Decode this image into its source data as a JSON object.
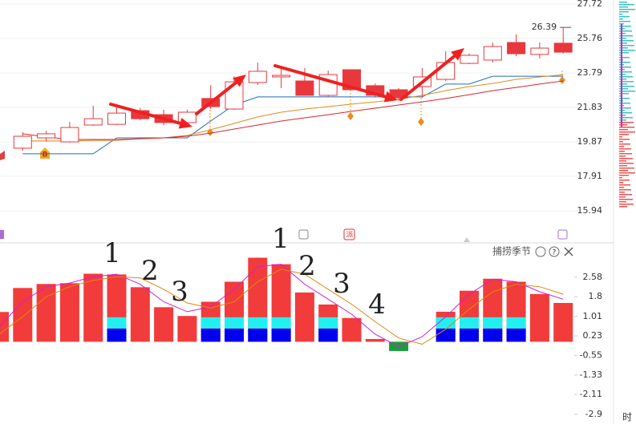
{
  "chart_data": [
    {
      "type": "candlestick",
      "open": [
        19.51,
        20.1,
        19.87,
        20.83,
        20.87,
        21.65,
        21.42,
        20.97,
        22.34,
        21.74,
        23.25,
        23.57,
        23.34,
        22.52,
        23.98,
        23.07,
        22.84,
        23.02,
        23.43,
        24.34,
        24.53,
        25.53,
        24.85,
        25.49
      ],
      "close": [
        20.19,
        20.33,
        20.69,
        21.19,
        21.51,
        21.19,
        20.97,
        21.56,
        21.88,
        23.29,
        23.89,
        23.66,
        22.52,
        23.7,
        22.84,
        22.52,
        22.38,
        23.57,
        24.39,
        24.8,
        25.3,
        24.89,
        25.21,
        24.98
      ],
      "high": [
        20.42,
        20.5,
        21.01,
        21.93,
        22.02,
        21.8,
        21.7,
        21.7,
        23.11,
        23.61,
        24.39,
        24.07,
        24.07,
        23.93,
        23.98,
        23.2,
        22.93,
        24.07,
        25.03,
        24.9,
        25.53,
        25.99,
        25.53,
        26.39
      ],
      "low": [
        19.37,
        19.9,
        19.83,
        20.78,
        20.83,
        21.1,
        20.83,
        20.78,
        21.74,
        21.7,
        23.11,
        22.93,
        22.52,
        22.43,
        22.84,
        22.4,
        22.2,
        22.38,
        23.34,
        24.3,
        24.4,
        24.75,
        24.62,
        24.9
      ],
      "up_color": "#e8383d",
      "down_color": "#e8383d",
      "series": [
        {
          "color": "#1f6fb5",
          "values": [
            19.19,
            19.19,
            19.19,
            19.19,
            20.1,
            20.1,
            20.1,
            20.1,
            21.06,
            21.97,
            22.43,
            22.43,
            22.43,
            22.43,
            22.43,
            22.43,
            22.43,
            22.43,
            23.16,
            23.16,
            23.61,
            23.61,
            23.61,
            23.61
          ]
        },
        {
          "color": "#e08a1e",
          "values": [
            19.92,
            19.92,
            19.92,
            19.96,
            19.96,
            20.05,
            20.1,
            20.24,
            20.56,
            20.92,
            21.29,
            21.56,
            21.74,
            21.88,
            22.02,
            22.15,
            22.29,
            22.52,
            22.79,
            23.02,
            23.2,
            23.43,
            23.57,
            23.7
          ]
        },
        {
          "color": "#d9272e",
          "values": [
            20.33,
            20.15,
            20.01,
            20.01,
            20.01,
            20.05,
            20.1,
            20.19,
            20.37,
            20.6,
            20.83,
            21.06,
            21.24,
            21.42,
            21.61,
            21.79,
            21.97,
            22.15,
            22.34,
            22.56,
            22.79,
            22.97,
            23.16,
            23.34
          ]
        }
      ],
      "ylim": [
        15.17,
        27.95
      ],
      "yticks": [
        27.72,
        25.76,
        23.79,
        21.83,
        19.87,
        17.91,
        15.94
      ],
      "grid": true,
      "marker": "B"
    },
    {
      "type": "bar",
      "title": "捕捞季节",
      "color": "#f23b3b",
      "negative_color": "#1a9e3a",
      "values": [
        1.19,
        2.15,
        2.31,
        2.34,
        2.72,
        2.69,
        2.18,
        1.38,
        1.03,
        1.6,
        2.4,
        3.36,
        3.1,
        1.97,
        1.49,
        0.95,
        0.11,
        -0.37,
        null,
        1.2,
        2.04,
        2.52,
        2.4,
        1.91,
        1.55
      ],
      "series": [
        {
          "color": "#0000ee",
          "values": [
            null,
            null,
            null,
            null,
            null,
            0.53,
            null,
            null,
            null,
            0.53,
            0.53,
            0.53,
            0.53,
            null,
            0.53,
            null,
            null,
            null,
            null,
            0.53,
            0.53,
            0.53,
            0.53,
            null,
            null
          ]
        },
        {
          "color": "#22f0f0",
          "values": [
            null,
            null,
            null,
            null,
            null,
            0.45,
            null,
            null,
            null,
            0.45,
            0.45,
            0.45,
            0.45,
            null,
            0.45,
            null,
            null,
            null,
            null,
            0.45,
            0.45,
            0.45,
            0.45,
            null,
            null
          ]
        }
      ],
      "lines": [
        {
          "color": "#d21fd2",
          "values": [
            0.6,
            1.6,
            2.2,
            2.35,
            2.6,
            2.7,
            2.3,
            1.6,
            1.2,
            1.4,
            2.1,
            3.0,
            3.1,
            2.3,
            1.7,
            1.1,
            0.3,
            -0.2,
            0.2,
            1.0,
            1.9,
            2.5,
            2.4,
            2.0,
            1.7
          ]
        },
        {
          "color": "#d98a10",
          "values": [
            0.3,
            1.0,
            1.8,
            2.2,
            2.45,
            2.6,
            2.55,
            2.1,
            1.55,
            1.35,
            1.6,
            2.4,
            2.9,
            2.7,
            2.1,
            1.5,
            0.8,
            0.15,
            -0.1,
            0.5,
            1.3,
            2.0,
            2.3,
            2.2,
            1.9
          ]
        }
      ],
      "ylim": [
        -3.16,
        3.89
      ],
      "yticks": [
        2.58,
        1.8,
        1.01,
        0.23,
        -0.55,
        -1.33,
        -2.11,
        -2.9
      ],
      "annotations": [
        "1",
        "2",
        "3",
        "1",
        "2",
        "3",
        "4"
      ]
    }
  ],
  "badge": "派",
  "footer": "时"
}
